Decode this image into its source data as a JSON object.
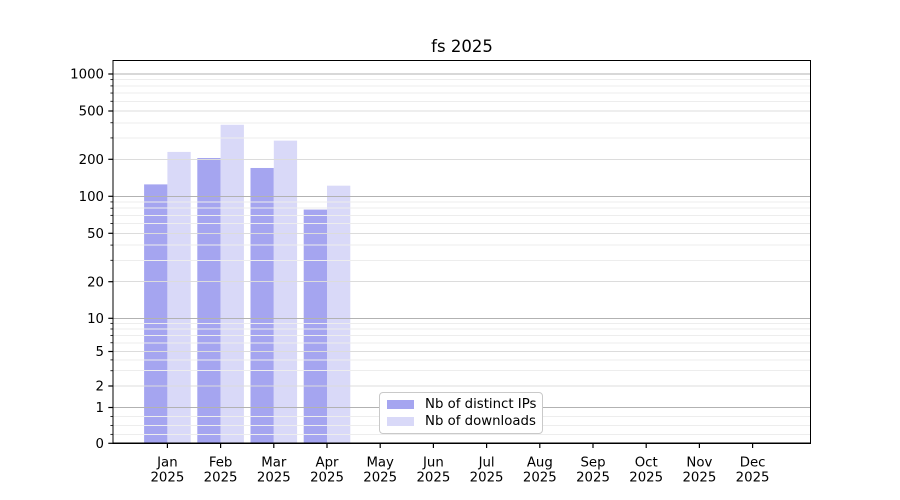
{
  "page": {
    "background": "#ffffff"
  },
  "chart_data": {
    "type": "bar",
    "title": "fs 2025",
    "x_tick_year": "2025",
    "categories": [
      "Jan",
      "Feb",
      "Mar",
      "Apr",
      "May",
      "Jun",
      "Jul",
      "Aug",
      "Sep",
      "Oct",
      "Nov",
      "Dec"
    ],
    "series": [
      {
        "name": "Nb of distinct IPs",
        "color": "#a5a5f0",
        "values": [
          125,
          205,
          170,
          78,
          null,
          null,
          null,
          null,
          null,
          null,
          null,
          null
        ]
      },
      {
        "name": "Nb of downloads",
        "color": "#d9d9f8",
        "values": [
          230,
          385,
          285,
          122,
          null,
          null,
          null,
          null,
          null,
          null,
          null,
          null
        ]
      }
    ],
    "y_axis": {
      "scale": "asinh-log",
      "ticks": [
        0,
        1,
        2,
        5,
        10,
        20,
        50,
        100,
        200,
        500,
        1000
      ],
      "minor_ticks": [
        0.25,
        0.5,
        0.75,
        3,
        4,
        6,
        7,
        8,
        9,
        30,
        40,
        60,
        70,
        80,
        90,
        300,
        400,
        600,
        700,
        800,
        900
      ],
      "range": [
        0,
        1300
      ]
    },
    "legend": {
      "position": "lower center"
    },
    "grid": true
  },
  "colors": {
    "decade_gridline": "#b2b2b2",
    "sub_gridline": "#dcdcdc",
    "minor_gridline": "#ededed",
    "axis_frame": "#000000",
    "tick_text": "#000000",
    "legend_border": "#c9c9c9",
    "legend_background": "#ffffff"
  }
}
